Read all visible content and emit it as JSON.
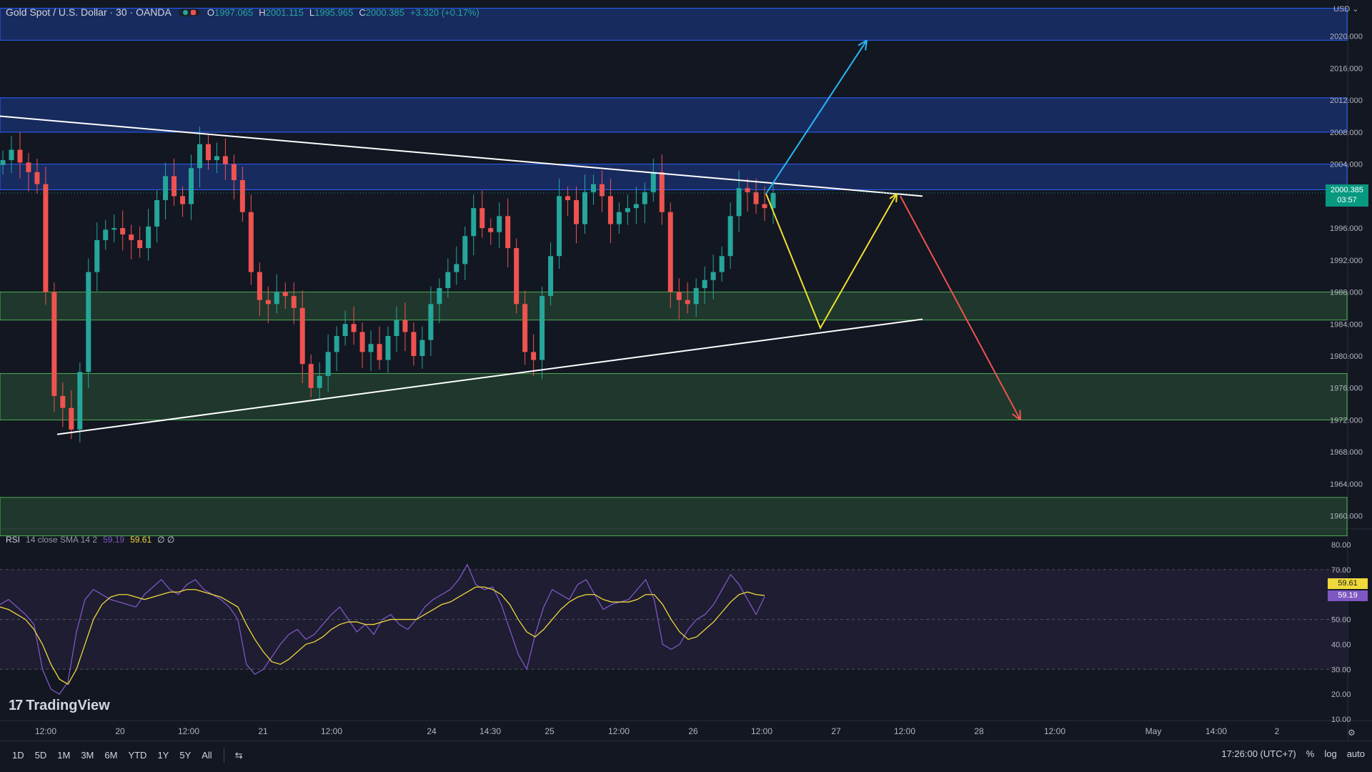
{
  "header": {
    "symbol": "Gold Spot / U.S. Dollar · 30 · OANDA",
    "open_label": "O",
    "open": "1997.065",
    "high_label": "H",
    "high": "2001.115",
    "low_label": "L",
    "low": "1995.965",
    "close_label": "C",
    "close": "2000.385",
    "change": "+3.320 (+0.17%)"
  },
  "price_axis": {
    "currency": "USD",
    "ticks": [
      "2020.000",
      "2016.000",
      "2012.000",
      "2008.000",
      "2004.000",
      "1996.000",
      "1992.000",
      "1988.000",
      "1984.000",
      "1980.000",
      "1976.000",
      "1972.000",
      "1968.000",
      "1964.000",
      "1960.000"
    ],
    "last_price": "2000.385",
    "countdown": "03:57"
  },
  "rsi_panel": {
    "name": "RSI",
    "params": "14 close SMA 14 2",
    "rsi_value": "59.19",
    "sma_value": "59.61",
    "extra": "∅ ∅",
    "ticks": [
      "80.00",
      "70.00",
      "60.00",
      "50.00",
      "40.00",
      "30.00",
      "20.00",
      "10.00"
    ]
  },
  "time_axis": {
    "labels": [
      "12:00",
      "20",
      "12:00",
      "21",
      "12:00",
      "24",
      "14:30",
      "25",
      "12:00",
      "26",
      "12:00",
      "27",
      "12:00",
      "28",
      "12:00",
      "May",
      "14:00",
      "2"
    ]
  },
  "toolbar": {
    "ranges": [
      "1D",
      "5D",
      "1M",
      "3M",
      "6M",
      "YTD",
      "1Y",
      "5Y",
      "All"
    ],
    "time": "17:26:00 (UTC+7)",
    "percent": "%",
    "log": "log",
    "auto": "auto"
  },
  "brand": {
    "name": "TradingView"
  },
  "colors": {
    "background": "#131722",
    "up": "#26a69a",
    "down": "#ef5350",
    "resistance_zone": "#1e3a8a",
    "support_zone": "#1b5e20",
    "rsi_line": "#7e57c2",
    "rsi_sma": "#f0d83a",
    "bull_arrow": "#29b6f6",
    "bear_arrow": "#ef5350",
    "path": "#f0e130"
  },
  "chart_data": {
    "type": "candlestick",
    "instrument": "Gold Spot / U.S. Dollar",
    "interval": "30",
    "ylim": [
      1958,
      2024
    ],
    "zones": [
      {
        "kind": "resistance",
        "from": 2019.5,
        "to": 2023.5
      },
      {
        "kind": "resistance",
        "from": 2008.0,
        "to": 2012.3
      },
      {
        "kind": "resistance",
        "from": 2000.8,
        "to": 2004.0
      },
      {
        "kind": "support",
        "from": 1984.5,
        "to": 1988.0
      },
      {
        "kind": "support",
        "from": 1972.0,
        "to": 1977.8
      },
      {
        "kind": "support",
        "from": 1957.5,
        "to": 1962.3
      }
    ],
    "trendlines": [
      {
        "kind": "descending",
        "from": [
          0,
          2010.0
        ],
        "to": [
          1291,
          2000.0
        ]
      },
      {
        "kind": "ascending",
        "from": [
          80,
          1970.2
        ],
        "to": [
          1291,
          1984.6
        ]
      }
    ],
    "projection": {
      "yellow_path": [
        [
          1072,
          2000.3
        ],
        [
          1148,
          1983.5
        ],
        [
          1255,
          2000.3
        ]
      ],
      "bull_arrow": [
        [
          1072,
          2000.3
        ],
        [
          1213,
          2019.5
        ]
      ],
      "bear_arrow": [
        [
          1260,
          2000.0
        ],
        [
          1428,
          1972.0
        ]
      ]
    },
    "close_series": [
      2004.5,
      2005.8,
      2004.2,
      2003.0,
      2001.5,
      1988.0,
      1975.0,
      1973.5,
      1970.8,
      1978.0,
      1990.5,
      1994.5,
      1995.8,
      1996.0,
      1995.2,
      1994.5,
      1993.5,
      1996.2,
      1999.5,
      2002.5,
      2000.0,
      1999.0,
      2003.5,
      2006.5,
      2004.5,
      2005.0,
      2004.0,
      2002.0,
      1998.0,
      1990.5,
      1987.0,
      1986.5,
      1988.0,
      1987.5,
      1986.0,
      1979.0,
      1976.0,
      1977.5,
      1980.5,
      1982.5,
      1984.0,
      1983.0,
      1980.5,
      1981.5,
      1979.5,
      1982.5,
      1984.5,
      1983.0,
      1980.0,
      1982.0,
      1986.5,
      1988.5,
      1990.5,
      1991.5,
      1995.0,
      1998.5,
      1996.0,
      1995.5,
      1997.5,
      1993.5,
      1986.5,
      1980.5,
      1979.5,
      1987.5,
      1992.5,
      2000.0,
      1999.5,
      1996.5,
      2000.5,
      2001.5,
      2000.0,
      1996.5,
      1998.0,
      1998.5,
      1999.0,
      2000.5,
      2003.0,
      1998.0,
      1988.0,
      1987.0,
      1986.5,
      1988.5,
      1989.5,
      1990.5,
      1992.5,
      1997.5,
      2001.0,
      2000.5,
      1999.0,
      1998.5,
      2000.385
    ],
    "rsi_series": [
      56,
      58,
      55,
      52,
      48,
      30,
      22,
      20,
      25,
      45,
      58,
      62,
      60,
      58,
      57,
      56,
      55,
      60,
      63,
      66,
      62,
      60,
      64,
      66,
      62,
      60,
      58,
      55,
      50,
      32,
      28,
      30,
      35,
      40,
      44,
      46,
      42,
      44,
      48,
      52,
      55,
      50,
      45,
      48,
      44,
      50,
      52,
      48,
      46,
      50,
      55,
      58,
      60,
      62,
      66,
      72,
      64,
      62,
      63,
      56,
      46,
      36,
      30,
      44,
      55,
      62,
      60,
      58,
      64,
      66,
      60,
      54,
      56,
      57,
      58,
      62,
      66,
      58,
      40,
      38,
      40,
      46,
      50,
      52,
      56,
      62,
      68,
      64,
      58,
      52,
      59.19
    ],
    "rsi_sma_series": [
      55,
      54,
      52,
      50,
      46,
      40,
      32,
      26,
      24,
      30,
      40,
      50,
      56,
      59,
      60,
      60,
      59,
      58,
      59,
      60,
      61,
      61,
      62,
      62,
      61,
      60,
      59,
      57,
      55,
      48,
      42,
      37,
      33,
      32,
      34,
      37,
      40,
      41,
      43,
      46,
      48,
      49,
      49,
      48,
      48,
      49,
      50,
      50,
      50,
      50,
      52,
      54,
      56,
      57,
      59,
      61,
      63,
      63,
      62,
      60,
      56,
      50,
      45,
      43,
      46,
      50,
      54,
      57,
      59,
      60,
      60,
      58,
      57,
      57,
      57,
      58,
      60,
      60,
      56,
      50,
      45,
      42,
      43,
      46,
      49,
      53,
      57,
      60,
      61,
      60,
      59.61
    ],
    "rsi_levels": [
      70,
      50,
      30
    ]
  }
}
